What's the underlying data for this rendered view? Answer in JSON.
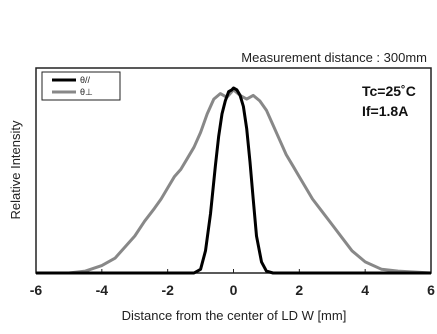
{
  "chart_data": {
    "type": "line",
    "subtitle": "Measurement distance : 300mm",
    "xlabel": "Distance from the center of LD W [mm]",
    "ylabel": "Relative Intensity",
    "xlim": [
      -6,
      6
    ],
    "ylim": [
      0,
      1
    ],
    "x_ticks": [
      "-6",
      "-4",
      "-2",
      "0",
      "2",
      "4",
      "6"
    ],
    "annotations": [
      "Tc=25˚C",
      "If=1.8A"
    ],
    "legend_position": "top-left",
    "grid": false,
    "series": [
      {
        "name": "θ//",
        "color": "#000000",
        "x": [
          -6,
          -1.2,
          -1.0,
          -0.85,
          -0.7,
          -0.55,
          -0.45,
          -0.35,
          -0.25,
          -0.15,
          -0.05,
          0.0,
          0.1,
          0.2,
          0.3,
          0.4,
          0.5,
          0.6,
          0.7,
          0.85,
          1.0,
          1.2,
          6
        ],
        "y": [
          0.0,
          0.0,
          0.02,
          0.12,
          0.32,
          0.58,
          0.74,
          0.86,
          0.93,
          0.98,
          0.99,
          1.0,
          0.99,
          0.96,
          0.9,
          0.78,
          0.6,
          0.4,
          0.2,
          0.06,
          0.01,
          0.0,
          0.0
        ]
      },
      {
        "name": "θ⊥",
        "color": "#888888",
        "x": [
          -6,
          -5.0,
          -4.5,
          -4.0,
          -3.6,
          -3.3,
          -3.0,
          -2.7,
          -2.4,
          -2.2,
          -2.0,
          -1.8,
          -1.6,
          -1.4,
          -1.2,
          -1.0,
          -0.8,
          -0.6,
          -0.4,
          -0.2,
          0.0,
          0.2,
          0.4,
          0.6,
          0.8,
          1.0,
          1.2,
          1.4,
          1.6,
          1.8,
          2.0,
          2.2,
          2.4,
          2.7,
          3.0,
          3.3,
          3.6,
          4.0,
          4.5,
          5.0,
          6
        ],
        "y": [
          0.0,
          0.0,
          0.01,
          0.04,
          0.08,
          0.14,
          0.2,
          0.28,
          0.35,
          0.4,
          0.46,
          0.52,
          0.56,
          0.62,
          0.68,
          0.76,
          0.86,
          0.94,
          0.97,
          0.95,
          0.99,
          0.96,
          0.94,
          0.96,
          0.93,
          0.88,
          0.8,
          0.72,
          0.64,
          0.58,
          0.52,
          0.46,
          0.4,
          0.33,
          0.26,
          0.19,
          0.12,
          0.06,
          0.02,
          0.01,
          0.0
        ]
      }
    ]
  }
}
